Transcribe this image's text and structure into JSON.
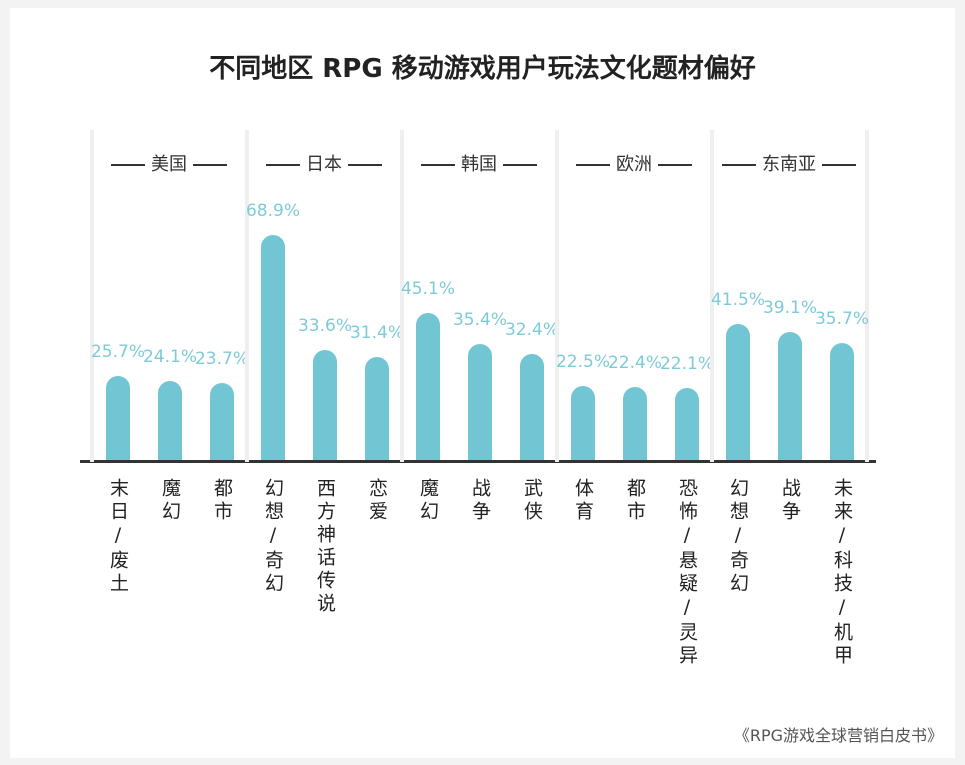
{
  "chart_data": {
    "type": "bar",
    "title": "不同地区 RPG 移动游戏用户玩法文化题材偏好",
    "color": "#72c5d2",
    "groups": [
      {
        "name": "美国",
        "categories": [
          "末日/废土",
          "魔幻",
          "都市"
        ],
        "values": [
          25.7,
          24.1,
          23.7
        ],
        "value_labels": [
          "25.7%",
          "24.1%",
          "23.7%"
        ]
      },
      {
        "name": "日本",
        "categories": [
          "幻想/奇幻",
          "西方神话传说",
          "恋爱"
        ],
        "values": [
          68.9,
          33.6,
          31.4
        ],
        "value_labels": [
          "68.9%",
          "33.6%",
          "31.4%"
        ]
      },
      {
        "name": "韩国",
        "categories": [
          "魔幻",
          "战争",
          "武侠"
        ],
        "values": [
          45.1,
          35.4,
          32.4
        ],
        "value_labels": [
          "45.1%",
          "35.4%",
          "32.4%"
        ]
      },
      {
        "name": "欧洲",
        "categories": [
          "体育",
          "都市",
          "恐怖/悬疑/灵异"
        ],
        "values": [
          22.5,
          22.4,
          22.1
        ],
        "value_labels": [
          "22.5%",
          "22.4%",
          "22.1%"
        ]
      },
      {
        "name": "东南亚",
        "categories": [
          "幻想/奇幻",
          "战争",
          "未来/科技/机甲"
        ],
        "values": [
          41.5,
          39.1,
          35.7
        ],
        "value_labels": [
          "41.5%",
          "39.1%",
          "35.7%"
        ]
      }
    ],
    "source": "《RPG游戏全球营销白皮书》"
  }
}
